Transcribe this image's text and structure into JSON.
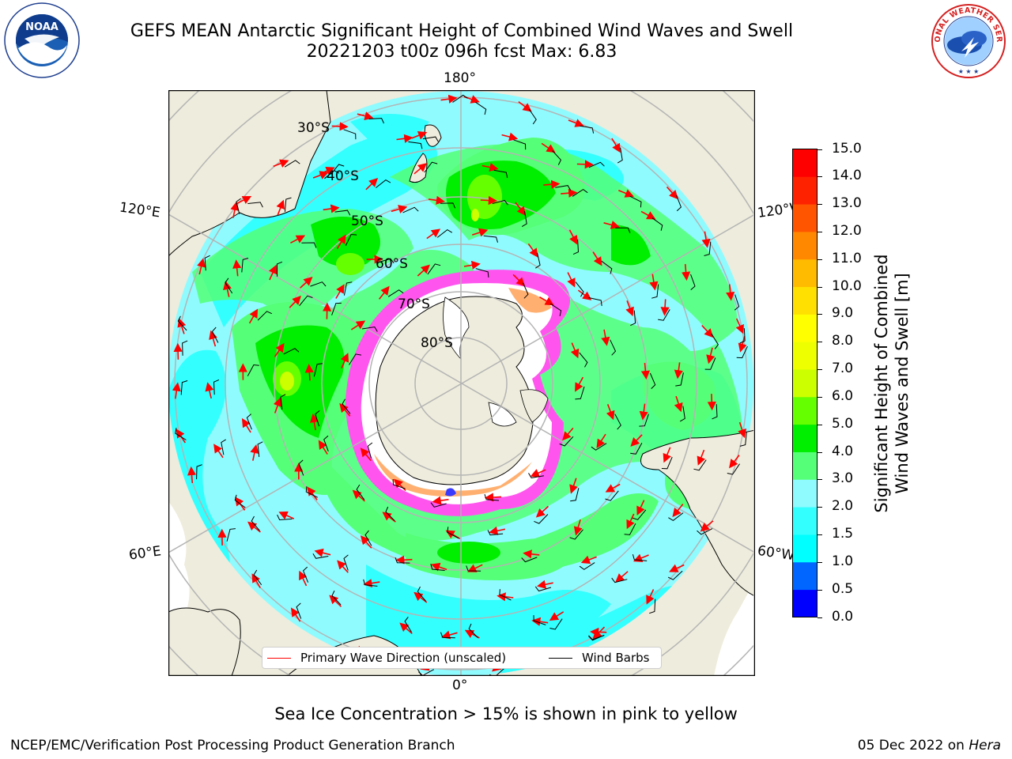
{
  "title": {
    "line1": "GEFS MEAN Antarctic Significant Height of Combined Wind Waves and Swell",
    "line2": "20221203 t00z 096h fcst   Max: 6.83"
  },
  "logos": {
    "noaa": {
      "name": "NOAA",
      "ring_text": "NATIONAL OCEANIC AND ATMOSPHERIC ADMINISTRATION · U.S. DEPARTMENT OF COMMERCE"
    },
    "nws": {
      "ring_text": "NATIONAL WEATHER SERVICE"
    }
  },
  "map": {
    "projection": "south polar stereographic",
    "longitude_labels": {
      "top": "180°",
      "bottom": "0°",
      "left_upper": "120°E",
      "left_lower": "60°E",
      "right_upper": "120°W",
      "right_lower": "60°W"
    },
    "latitude_labels": [
      "30°S",
      "40°S",
      "50°S",
      "60°S",
      "70°S",
      "80°S"
    ],
    "colors": {
      "land": "#eeecdc",
      "ocean_default": "#8ffbff",
      "sea_ice": "#ff55ee",
      "wave_arrow": "#ff0000",
      "wind_barb": "#000000",
      "grid": "#b4b4b4"
    },
    "max_value": 6.83
  },
  "legend": {
    "primary_wave": "Primary Wave Direction (unscaled)",
    "wind_barbs": "Wind Barbs"
  },
  "colorbar": {
    "title_line1": "Significant Height of Combined",
    "title_line2": "Wind Waves and Swell [m]",
    "ticks": [
      "0.0",
      "0.5",
      "1.0",
      "1.5",
      "2.0",
      "3.0",
      "4.0",
      "5.0",
      "6.0",
      "7.0",
      "8.0",
      "9.0",
      "10.0",
      "11.0",
      "12.0",
      "13.0",
      "14.0",
      "15.0"
    ],
    "colors": [
      "#0000ff",
      "#0066ff",
      "#00ffff",
      "#33ffff",
      "#8ffbff",
      "#55ff77",
      "#00ee00",
      "#66ff00",
      "#ccff00",
      "#eeff00",
      "#ffff00",
      "#ffe000",
      "#ffbb00",
      "#ff8800",
      "#ff5500",
      "#ff2200",
      "#ff0000"
    ]
  },
  "subtitle": "Sea Ice Concentration > 15% is shown in pink to yellow",
  "footer": {
    "left": "NCEP/EMC/Verification Post Processing Product Generation Branch",
    "right_date": "05 Dec 2022 on ",
    "right_host": "Hera"
  }
}
